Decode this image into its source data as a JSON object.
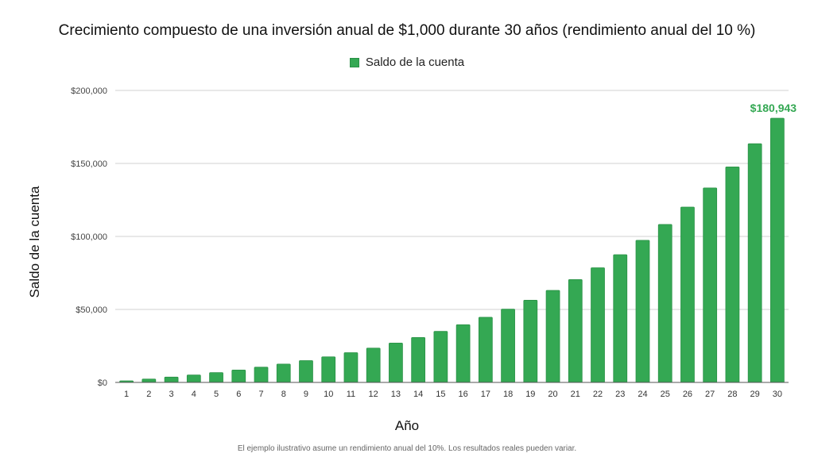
{
  "chart_data": {
    "type": "bar",
    "title": "Crecimiento compuesto de una inversión anual de $1,000 durante 30 años (rendimiento anual del 10 %)",
    "xlabel": "Año",
    "ylabel": "Saldo de la cuenta",
    "legend": [
      "Saldo de la cuenta"
    ],
    "legend_position": "top",
    "grid": true,
    "ylim": [
      0,
      200000
    ],
    "yticks": [
      0,
      50000,
      100000,
      150000,
      200000
    ],
    "ytick_labels": [
      "$0",
      "$50,000",
      "$100,000",
      "$150,000",
      "$200,000"
    ],
    "categories": [
      "1",
      "2",
      "3",
      "4",
      "5",
      "6",
      "7",
      "8",
      "9",
      "10",
      "11",
      "12",
      "13",
      "14",
      "15",
      "16",
      "17",
      "18",
      "19",
      "20",
      "21",
      "22",
      "23",
      "24",
      "25",
      "26",
      "27",
      "28",
      "29",
      "30"
    ],
    "series": [
      {
        "name": "Saldo de la cuenta",
        "color": "#34a853",
        "values": [
          1100,
          2310,
          3641,
          5105,
          6716,
          8487,
          10436,
          12579,
          14937,
          17531,
          20384,
          23523,
          26975,
          30772,
          34950,
          39545,
          44599,
          50159,
          56275,
          63002,
          70403,
          78543,
          87497,
          97347,
          108182,
          120100,
          133210,
          147631,
          163494,
          180943
        ]
      }
    ],
    "annotations": [
      {
        "x": "30",
        "text": "$180,943",
        "color": "#34a853"
      }
    ],
    "footnote": "El ejemplo ilustrativo asume un rendimiento anual del 10%. Los resultados reales pueden variar."
  }
}
